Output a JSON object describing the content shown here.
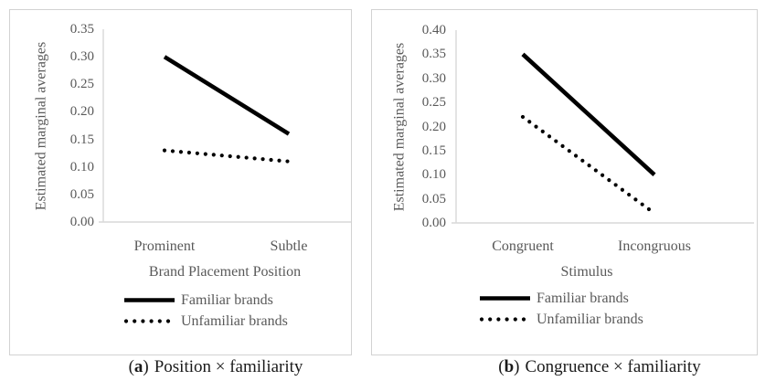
{
  "chart_data": [
    {
      "type": "line",
      "panel": "a",
      "ylabel": "Estimated marginal averages",
      "xlabel": "Brand Placement Position",
      "categories": [
        "Prominent",
        "Subtle"
      ],
      "series": [
        {
          "name": "Familiar brands",
          "line_style": "solid",
          "values": [
            0.3,
            0.16
          ]
        },
        {
          "name": "Unfamiliar brands",
          "line_style": "dotted",
          "values": [
            0.13,
            0.11
          ]
        }
      ],
      "ylim": [
        0,
        0.35
      ],
      "ytick_step": 0.05,
      "ytick_labels": [
        "0.00",
        "0.05",
        "0.10",
        "0.15",
        "0.20",
        "0.25",
        "0.30",
        "0.35"
      ],
      "grid": false,
      "legend_position": "bottom",
      "caption": {
        "open": "(",
        "letter": "a",
        "close": ")",
        "text": "Position × familiarity"
      },
      "colors": {
        "line": "#000000",
        "axis": "#d9d9d9",
        "text": "#595959"
      }
    },
    {
      "type": "line",
      "panel": "b",
      "ylabel": "Estimated marginal averages",
      "xlabel": "Stimulus",
      "categories": [
        "Congruent",
        "Incongruous"
      ],
      "series": [
        {
          "name": "Familiar brands",
          "line_style": "solid",
          "values": [
            0.35,
            0.1
          ]
        },
        {
          "name": "Unfamiliar brands",
          "line_style": "dotted",
          "values": [
            0.22,
            0.02
          ]
        }
      ],
      "ylim": [
        0,
        0.4
      ],
      "ytick_step": 0.05,
      "ytick_labels": [
        "0.00",
        "0.05",
        "0.10",
        "0.15",
        "0.20",
        "0.25",
        "0.30",
        "0.35",
        "0.40"
      ],
      "grid": false,
      "legend_position": "bottom",
      "caption": {
        "open": "(",
        "letter": "b",
        "close": ")",
        "text": "Congruence × familiarity"
      },
      "colors": {
        "line": "#000000",
        "axis": "#d9d9d9",
        "text": "#595959"
      }
    }
  ]
}
